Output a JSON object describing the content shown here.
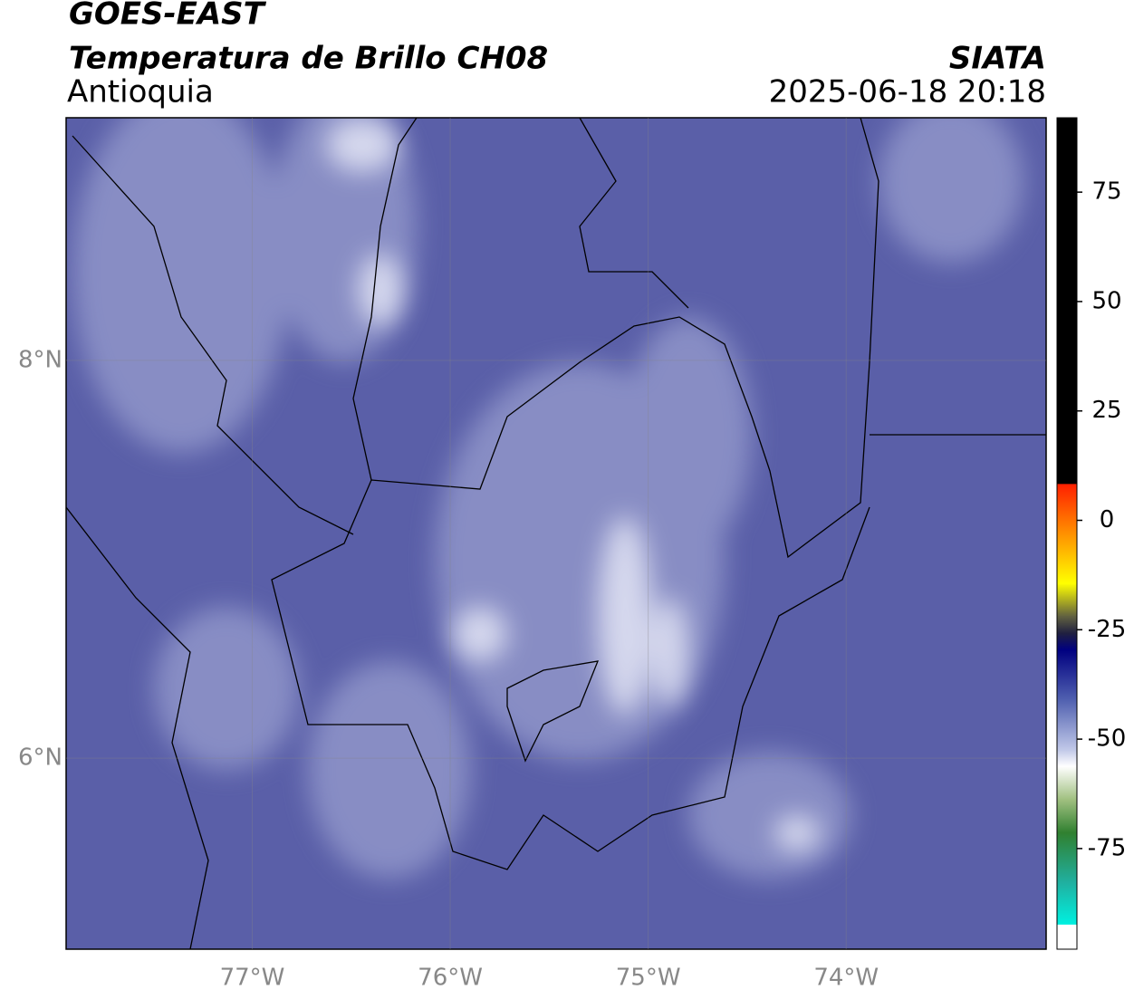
{
  "header": {
    "title": "GOES-EAST",
    "subtitle": "Temperatura de Brillo CH08",
    "source": "SIATA",
    "region": "Antioquia",
    "datetime": "2025-06-18 20:18"
  },
  "map": {
    "xlim": [
      -77.94,
      -72.99
    ],
    "ylim": [
      5.04,
      9.22
    ],
    "xticks": [
      {
        "value": -77,
        "label": "77°W"
      },
      {
        "value": -76,
        "label": "76°W"
      },
      {
        "value": -75,
        "label": "75°W"
      },
      {
        "value": -74,
        "label": "74°W"
      }
    ],
    "yticks": [
      {
        "value": 6,
        "label": "6°N"
      },
      {
        "value": 8,
        "label": "8°N"
      }
    ],
    "grid": true
  },
  "colorbar": {
    "lim": [
      -98,
      92
    ],
    "ticks": [
      75,
      50,
      25,
      0,
      -25,
      -50,
      -75
    ]
  }
}
